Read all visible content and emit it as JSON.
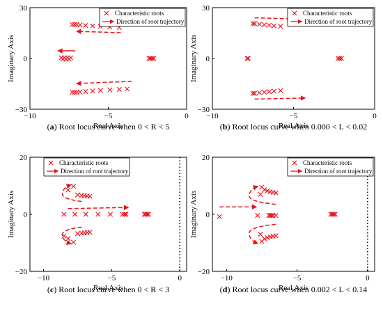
{
  "panels": [
    {
      "id": "a",
      "caption_letter": "a",
      "caption_text": "Root locus curve when 0 < R < 5",
      "chart_data": {
        "type": "scatter",
        "xlabel": "Real Axis",
        "ylabel": "Imaginary Axis",
        "xlim": [
          -10,
          0
        ],
        "ylim": [
          -30,
          30
        ],
        "xticks": [
          -10,
          -5,
          0
        ],
        "yticks": [
          -30,
          0,
          30
        ],
        "show_zero_line": false,
        "legend": {
          "placement": "top-right",
          "roots_label": "Characteristic roots",
          "arrow_label": "Direction of root trajectory"
        },
        "series": [
          {
            "name": "Characteristic roots",
            "marker": "x",
            "color": "#e8141b",
            "points": [
              [
                -7.3,
                20
              ],
              [
                -7.15,
                20
              ],
              [
                -7.0,
                20
              ],
              [
                -6.8,
                19.8
              ],
              [
                -6.45,
                19.5
              ],
              [
                -6.0,
                19.2
              ],
              [
                -5.5,
                18.9
              ],
              [
                -4.9,
                18.6
              ],
              [
                -4.3,
                18.3
              ],
              [
                -7.3,
                -20
              ],
              [
                -7.15,
                -20
              ],
              [
                -7.0,
                -20
              ],
              [
                -6.8,
                -19.8
              ],
              [
                -6.45,
                -19.5
              ],
              [
                -6.0,
                -19.2
              ],
              [
                -5.5,
                -18.9
              ],
              [
                -4.9,
                -18.6
              ],
              [
                -4.3,
                -18.3
              ],
              [
                -3.8,
                -18.0
              ],
              [
                -8.0,
                0.4
              ],
              [
                -7.8,
                0.4
              ],
              [
                -7.6,
                0.4
              ],
              [
                -7.4,
                0.4
              ],
              [
                -7.9,
                -0.4
              ],
              [
                -7.7,
                -0.4
              ],
              [
                -7.5,
                -0.4
              ],
              [
                -2.4,
                0
              ],
              [
                -2.3,
                0
              ],
              [
                -2.2,
                0
              ],
              [
                -2.1,
                0
              ]
            ]
          }
        ],
        "arrows": [
          {
            "from": [
              -4.2,
              15.2
            ],
            "to": [
              -7.0,
              16.0
            ],
            "dashed": true
          },
          {
            "from": [
              -7.1,
              4.5
            ],
            "to": [
              -8.2,
              4.5
            ],
            "dashed": false
          },
          {
            "from": [
              -3.5,
              -13.5
            ],
            "to": [
              -7.0,
              -14.8
            ],
            "dashed": true
          }
        ]
      }
    },
    {
      "id": "b",
      "caption_letter": "b",
      "caption_text": "Root locus curve when 0.000 < L < 0.02",
      "chart_data": {
        "type": "scatter",
        "xlabel": "Real Axis",
        "ylabel": "Imaginary Axis",
        "xlim": [
          -10,
          0
        ],
        "ylim": [
          -30,
          30
        ],
        "xticks": [
          -10,
          -5,
          0
        ],
        "yticks": [
          -30,
          0,
          30
        ],
        "show_zero_line": false,
        "legend": {
          "placement": "top-right",
          "roots_label": "Characteristic roots",
          "arrow_label": "Direction of root trajectory"
        },
        "series": [
          {
            "name": "Characteristic roots",
            "marker": "x",
            "color": "#e8141b",
            "points": [
              [
                -7.5,
                20.6
              ],
              [
                -7.4,
                20.6
              ],
              [
                -7.1,
                20.2
              ],
              [
                -6.8,
                19.9
              ],
              [
                -6.5,
                19.6
              ],
              [
                -6.2,
                19.3
              ],
              [
                -5.8,
                19.0
              ],
              [
                -7.5,
                -20.6
              ],
              [
                -7.4,
                -20.6
              ],
              [
                -7.1,
                -20.2
              ],
              [
                -6.8,
                -19.9
              ],
              [
                -6.5,
                -19.6
              ],
              [
                -6.2,
                -19.3
              ],
              [
                -5.8,
                -19.0
              ],
              [
                -7.85,
                0
              ],
              [
                -7.8,
                0
              ],
              [
                -2.25,
                0
              ],
              [
                -2.15,
                0
              ],
              [
                -2.05,
                0
              ]
            ]
          }
        ],
        "arrows": [
          {
            "from": [
              -7.4,
              24.0
            ],
            "to": [
              -4.3,
              23.2
            ],
            "dashed": true
          },
          {
            "from": [
              -7.4,
              -24.0
            ],
            "to": [
              -4.3,
              -23.4
            ],
            "dashed": true
          }
        ]
      }
    },
    {
      "id": "c",
      "caption_letter": "c",
      "caption_text": "Root locus curve when 0 < R < 3",
      "chart_data": {
        "type": "scatter",
        "xlabel": "Real Axis",
        "ylabel": "Imaginary Axis",
        "xlim": [
          -11,
          0.5
        ],
        "ylim": [
          -20,
          20
        ],
        "xticks": [
          -10,
          -5,
          0
        ],
        "yticks": [
          -20,
          0,
          20
        ],
        "show_zero_line": true,
        "legend": {
          "placement": "top-left",
          "roots_label": "Characteristic roots",
          "arrow_label": "Direction of root trajectory"
        },
        "series": [
          {
            "name": "Characteristic roots",
            "marker": "x",
            "color": "#e8141b",
            "points": [
              [
                -8.2,
                8.5
              ],
              [
                -7.8,
                9.8
              ],
              [
                -7.5,
                6.8
              ],
              [
                -7.2,
                6.6
              ],
              [
                -7.0,
                6.5
              ],
              [
                -6.8,
                6.4
              ],
              [
                -6.6,
                6.3
              ],
              [
                -8.2,
                -8.5
              ],
              [
                -7.8,
                -9.8
              ],
              [
                -7.5,
                -6.8
              ],
              [
                -7.2,
                -6.6
              ],
              [
                -7.0,
                -6.5
              ],
              [
                -6.8,
                -6.4
              ],
              [
                -6.6,
                -6.3
              ],
              [
                -8.5,
                -7.6
              ],
              [
                -8.5,
                0
              ],
              [
                -7.7,
                0
              ],
              [
                -6.9,
                0
              ],
              [
                -6.0,
                0
              ],
              [
                -5.1,
                0
              ],
              [
                -4.2,
                0
              ],
              [
                -4.05,
                0
              ],
              [
                -3.95,
                0
              ],
              [
                -2.6,
                0
              ],
              [
                -2.5,
                0
              ],
              [
                -2.4,
                0
              ],
              [
                -2.3,
                0
              ]
            ]
          }
        ],
        "arrows": [
          {
            "from": [
              -8.2,
              2.0
            ],
            "to": [
              -3.8,
              2.4
            ],
            "dashed": true
          },
          {
            "from": [
              -7.2,
              4.5
            ],
            "to": [
              -8.0,
              10.3
            ],
            "dashed": true,
            "curved": true
          },
          {
            "from": [
              -7.2,
              -4.5
            ],
            "to": [
              -8.0,
              -10.3
            ],
            "dashed": true,
            "curved": true
          }
        ]
      }
    },
    {
      "id": "d",
      "caption_letter": "d",
      "caption_text": "Root locus curve when 0.002 < L < 0.14",
      "chart_data": {
        "type": "scatter",
        "xlabel": "Real Axis",
        "ylabel": "Imaginary Axis",
        "xlim": [
          -11,
          0.5
        ],
        "ylim": [
          -20,
          20
        ],
        "xticks": [
          -10,
          -5,
          0
        ],
        "yticks": [
          -20,
          0,
          20
        ],
        "show_zero_line": true,
        "legend": {
          "placement": "top-right",
          "roots_label": "Characteristic roots",
          "arrow_label": "Direction of root trajectory"
        },
        "series": [
          {
            "name": "Characteristic roots",
            "marker": "x",
            "color": "#e8141b",
            "points": [
              [
                -7.5,
                9.5
              ],
              [
                -7.3,
                8.6
              ],
              [
                -7.1,
                8.2
              ],
              [
                -6.9,
                7.9
              ],
              [
                -6.7,
                7.7
              ],
              [
                -6.5,
                7.5
              ],
              [
                -7.6,
                7.0
              ],
              [
                -7.5,
                -9.5
              ],
              [
                -7.3,
                -8.6
              ],
              [
                -7.1,
                -8.2
              ],
              [
                -6.9,
                -7.9
              ],
              [
                -6.7,
                -7.7
              ],
              [
                -6.5,
                -7.5
              ],
              [
                -7.6,
                -7.0
              ],
              [
                -10.5,
                -0.8
              ],
              [
                -7.8,
                -0.4
              ],
              [
                -7.0,
                -0.4
              ],
              [
                -6.9,
                -0.4
              ],
              [
                -6.8,
                -0.4
              ],
              [
                -6.7,
                -0.4
              ],
              [
                -6.5,
                -0.4
              ],
              [
                -2.6,
                0
              ],
              [
                -2.5,
                0
              ],
              [
                -2.4,
                0
              ],
              [
                -2.3,
                0
              ]
            ]
          }
        ],
        "arrows": [
          {
            "from": [
              -10.5,
              2.6
            ],
            "to": [
              -7.9,
              2.6
            ],
            "dashed": true
          },
          {
            "from": [
              -6.5,
              3.5
            ],
            "to": [
              -7.8,
              9.8
            ],
            "dashed": true,
            "curved": true
          },
          {
            "from": [
              -6.5,
              -3.5
            ],
            "to": [
              -7.8,
              -10.2
            ],
            "dashed": true,
            "curved": true
          }
        ]
      }
    }
  ]
}
